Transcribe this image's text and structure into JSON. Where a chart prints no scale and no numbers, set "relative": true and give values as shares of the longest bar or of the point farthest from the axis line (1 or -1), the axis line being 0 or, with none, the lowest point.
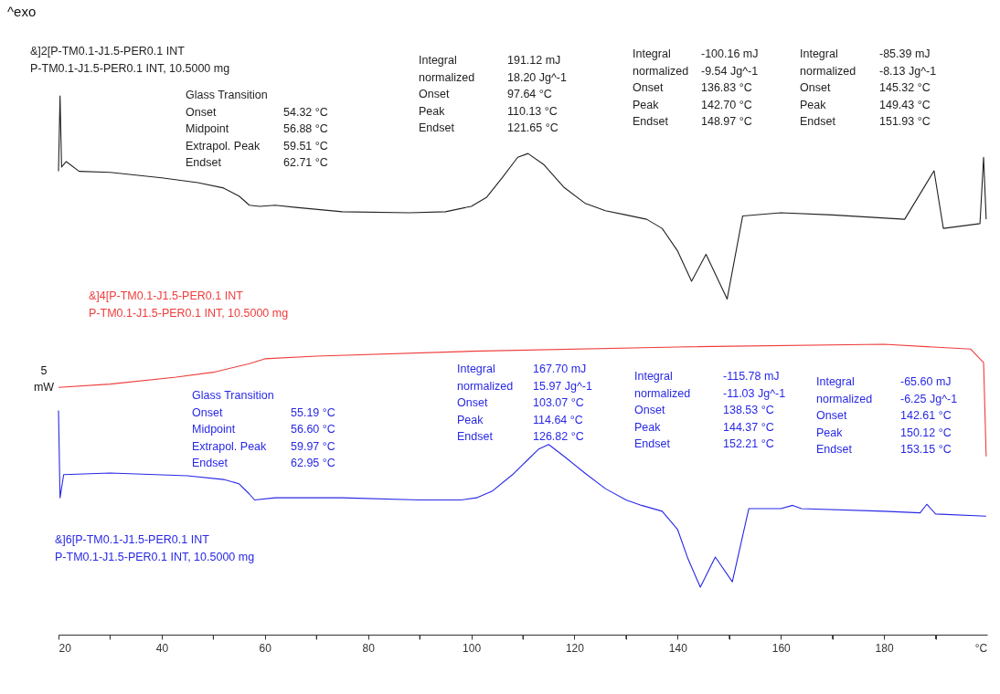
{
  "chart_data": {
    "type": "line",
    "relative": true,
    "title": "^exo",
    "xlabel": "°C",
    "xlim": [
      20,
      200
    ],
    "xticks": [
      20,
      {
        "value": 30,
        "label": null
      },
      40,
      {
        "value": 50,
        "label": null
      },
      60,
      {
        "value": 70,
        "label": null
      },
      80,
      {
        "value": 90,
        "label": null
      },
      100,
      {
        "value": 110,
        "label": null
      },
      120,
      {
        "value": 130,
        "label": null
      },
      140,
      {
        "value": 150,
        "label": null
      },
      160,
      {
        "value": 170,
        "label": null
      },
      180,
      {
        "value": 190,
        "label": null
      }
    ],
    "series": [
      {
        "name": "&]2[P-TM0.1-J1.5-PER0.1 INT\nP-TM0.1-J1.5-PER0.1 INT, 10.5000 mg",
        "color": "#222222",
        "x": [
          20,
          20.3,
          20.6,
          21.5,
          24,
          30,
          40,
          47,
          52,
          55,
          57,
          59,
          62,
          66,
          75,
          88,
          95,
          100,
          103,
          106,
          109,
          111,
          114,
          118,
          122,
          126,
          130,
          134,
          137,
          140,
          142.7,
          145.5,
          149.6,
          152.6,
          160,
          170,
          184,
          189.7,
          191.5,
          198.6,
          199.3,
          199.8
        ],
        "values": [
          0.86,
          1.0,
          0.868,
          0.878,
          0.86,
          0.858,
          0.848,
          0.839,
          0.829,
          0.814,
          0.797,
          0.795,
          0.797,
          0.793,
          0.785,
          0.783,
          0.785,
          0.795,
          0.812,
          0.848,
          0.886,
          0.893,
          0.873,
          0.83,
          0.801,
          0.787,
          0.779,
          0.771,
          0.754,
          0.712,
          0.656,
          0.706,
          0.623,
          0.777,
          0.783,
          0.779,
          0.771,
          0.861,
          0.754,
          0.763,
          0.886,
          0.771
        ]
      },
      {
        "name": "&]4[P-TM0.1-J1.5-PER0.1 INT\nP-TM0.1-J1.5-PER0.1 INT, 10.5000 mg",
        "color": "#f03c3c",
        "x": [
          20,
          30,
          42.8,
          50,
          57,
          60,
          70,
          100,
          140,
          180,
          196.8,
          199.3,
          199.8
        ],
        "values": [
          0.459,
          0.465,
          0.478,
          0.487,
          0.503,
          0.512,
          0.517,
          0.526,
          0.534,
          0.539,
          0.53,
          0.505,
          0.331
        ]
      },
      {
        "name": "&]6[P-TM0.1-J1.5-PER0.1 INT\nP-TM0.1-J1.5-PER0.1 INT, 10.5000 mg",
        "color": "#2828e6",
        "x": [
          20,
          20.3,
          21,
          30,
          45,
          52,
          55,
          57,
          58,
          62,
          75,
          90,
          98,
          101,
          104,
          108,
          111,
          113,
          115,
          118,
          122,
          126,
          130,
          133,
          137,
          140,
          142,
          144.4,
          147.3,
          150.6,
          153.8,
          160,
          162.3,
          164,
          180,
          187,
          188.3,
          190,
          199.8
        ],
        "values": [
          0.416,
          0.254,
          0.297,
          0.3,
          0.295,
          0.288,
          0.28,
          0.261,
          0.25,
          0.254,
          0.254,
          0.25,
          0.25,
          0.254,
          0.266,
          0.297,
          0.325,
          0.344,
          0.353,
          0.331,
          0.3,
          0.271,
          0.25,
          0.24,
          0.229,
          0.195,
          0.141,
          0.088,
          0.144,
          0.098,
          0.234,
          0.234,
          0.24,
          0.234,
          0.229,
          0.226,
          0.242,
          0.224,
          0.22
        ]
      }
    ],
    "annotations": [
      "5\nmW",
      "Glass Transition\nOnset\t54.32 °C\nMidpoint\t56.88 °C\nExtrapol. Peak\t59.51 °C\nEndset\t62.71 °C",
      "Integral\t191.12 mJ\n  normalized\t18.20 Jg^-1\nOnset\t97.64 °C\nPeak\t110.13 °C\nEndset\t121.65 °C",
      "Integral\t-100.16 mJ\n  normalized\t-9.54 Jg^-1\nOnset\t136.83 °C\nPeak\t142.70 °C\nEndset\t148.97 °C",
      "Integral\t-85.39 mJ\n  normalized\t-8.13 Jg^-1\nOnset\t145.32 °C\nPeak\t149.43 °C\nEndset\t151.93 °C",
      "Glass Transition\nOnset\t55.19 °C\nMidpoint\t56.60 °C\nExtrapol. Peak\t59.97 °C\nEndset\t62.95 °C",
      "Integral\t167.70 mJ\n  normalized\t15.97 Jg^-1\nOnset\t103.07 °C\nPeak\t114.64 °C\nEndset\t126.82 °C",
      "Integral\t-115.78 mJ\n  normalized\t-11.03 Jg^-1\nOnset\t138.53 °C\nPeak\t144.37 °C\nEndset\t152.21 °C",
      "Integral\t-65.60 mJ\n  normalized\t-6.25 Jg^-1\nOnset\t142.61 °C\nPeak\t150.12 °C\nEndset\t153.15 °C"
    ]
  }
}
